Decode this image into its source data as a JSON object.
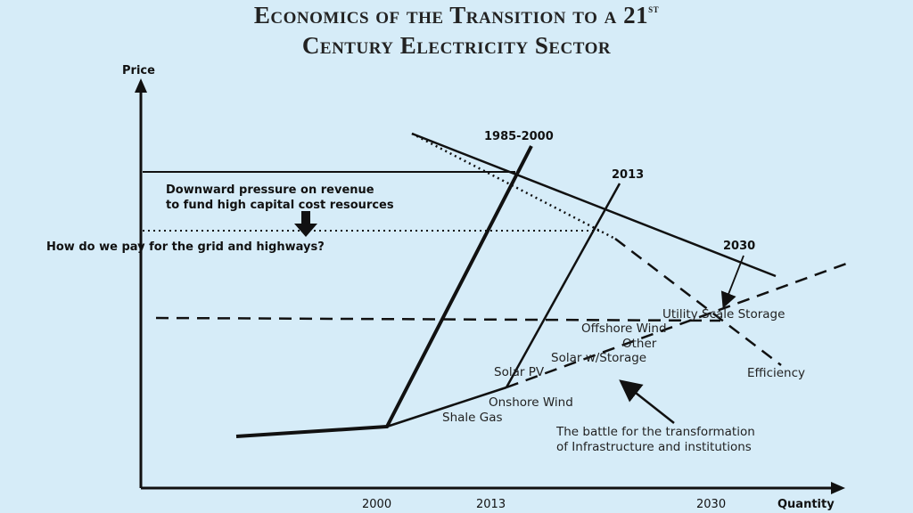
{
  "title": {
    "line1_main": "Economics of the Transition to a 21",
    "line1_sup": "st",
    "line2": "Century Electricity Sector"
  },
  "axes": {
    "y_label": "Price",
    "x_label": "Quantity",
    "x_ticks": [
      "2000",
      "2013",
      "2030"
    ]
  },
  "curves": {
    "supply_1": "1985-2000",
    "supply_2": "2013",
    "supply_3": "2030"
  },
  "annotations": {
    "downward_line1": "Downward pressure on revenue",
    "downward_line2": "to fund high capital cost resources",
    "grid_question": "How do we pay for the grid and highways?",
    "battle_line1": "The battle for the transformation",
    "battle_line2": "of Infrastructure and institutions"
  },
  "resources": [
    "Utility Scale Storage",
    "Offshore Wind",
    "Other",
    "Solar w/Storage",
    "Solar PV",
    "Onshore Wind",
    "Shale Gas",
    "Efficiency"
  ],
  "colors": {
    "background": "#d6ecf8",
    "line": "#111111"
  }
}
